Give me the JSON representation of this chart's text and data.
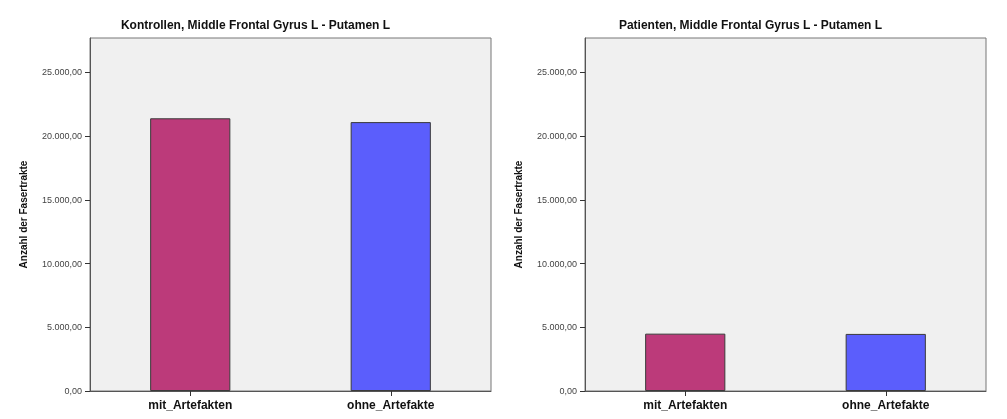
{
  "chart_data": [
    {
      "type": "bar",
      "title": "Kontrollen, Middle Frontal Gyrus L - Putamen L",
      "ylabel": "Anzahl der Fasertrakte",
      "categories": [
        "mit_Artefakten",
        "ohne_Artefakte"
      ],
      "values": [
        21400,
        21100
      ],
      "colors": [
        "#bc3a7a",
        "#5b5efc"
      ],
      "ylim": [
        0,
        27700
      ],
      "yticks": [
        {
          "value": 0,
          "label": "0,00"
        },
        {
          "value": 5000,
          "label": "5.000,00"
        },
        {
          "value": 10000,
          "label": "10.000,00"
        },
        {
          "value": 15000,
          "label": "15.000,00"
        },
        {
          "value": 20000,
          "label": "20.000,00"
        },
        {
          "value": 25000,
          "label": "25.000,00"
        }
      ],
      "grid": false
    },
    {
      "type": "bar",
      "title": "Patienten, Middle Frontal Gyrus L - Putamen L",
      "ylabel": "Anzahl der Fasertrakte",
      "categories": [
        "mit_Artefakten",
        "ohne_Artefakte"
      ],
      "values": [
        4500,
        4480
      ],
      "colors": [
        "#bc3a7a",
        "#5b5efc"
      ],
      "ylim": [
        0,
        27700
      ],
      "yticks": [
        {
          "value": 0,
          "label": "0,00"
        },
        {
          "value": 5000,
          "label": "5.000,00"
        },
        {
          "value": 10000,
          "label": "10.000,00"
        },
        {
          "value": 15000,
          "label": "15.000,00"
        },
        {
          "value": 20000,
          "label": "20.000,00"
        },
        {
          "value": 25000,
          "label": "25.000,00"
        }
      ],
      "grid": false
    }
  ]
}
